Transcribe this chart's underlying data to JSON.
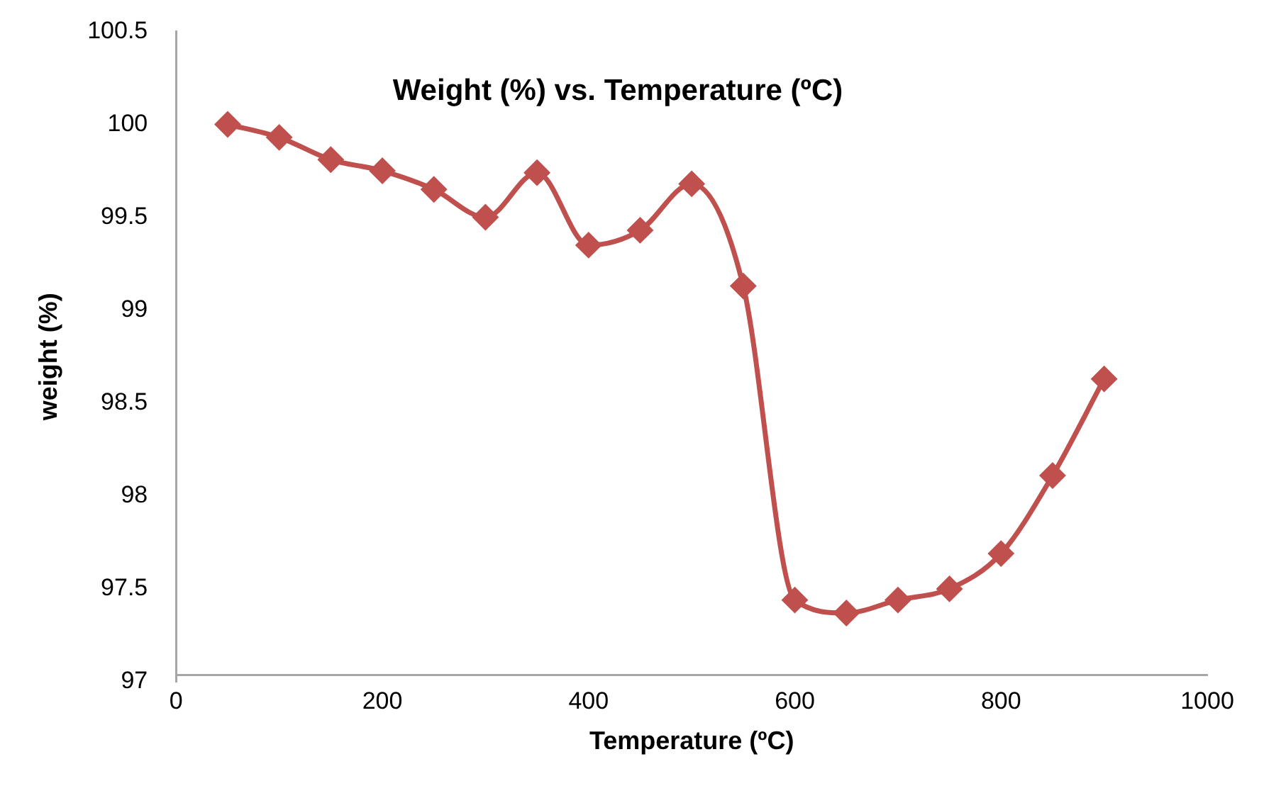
{
  "chart_data": {
    "type": "line",
    "title": "Weight (%) vs. Temperature (ºC)",
    "xlabel": "Temperature (ºC)",
    "ylabel": "weight (%)",
    "x": [
      50,
      100,
      150,
      200,
      250,
      300,
      350,
      400,
      450,
      500,
      550,
      600,
      650,
      700,
      750,
      800,
      850,
      900
    ],
    "series": [
      {
        "color": "#c0504d",
        "values": [
          100,
          99.93,
          99.81,
          99.75,
          99.65,
          99.5,
          99.74,
          99.35,
          99.43,
          99.68,
          99.13,
          97.44,
          97.37,
          97.44,
          97.5,
          97.69,
          98.11,
          98.63
        ]
      }
    ],
    "xlim": [
      0,
      1000
    ],
    "xticks": [
      0,
      200,
      400,
      600,
      800,
      1000
    ],
    "ylim": [
      97,
      100.5
    ],
    "yticks": [
      97,
      97.5,
      98,
      98.5,
      99,
      99.5,
      100,
      100.5
    ],
    "grid": false,
    "legend": false,
    "marker": "diamond",
    "line_style": "solid"
  }
}
